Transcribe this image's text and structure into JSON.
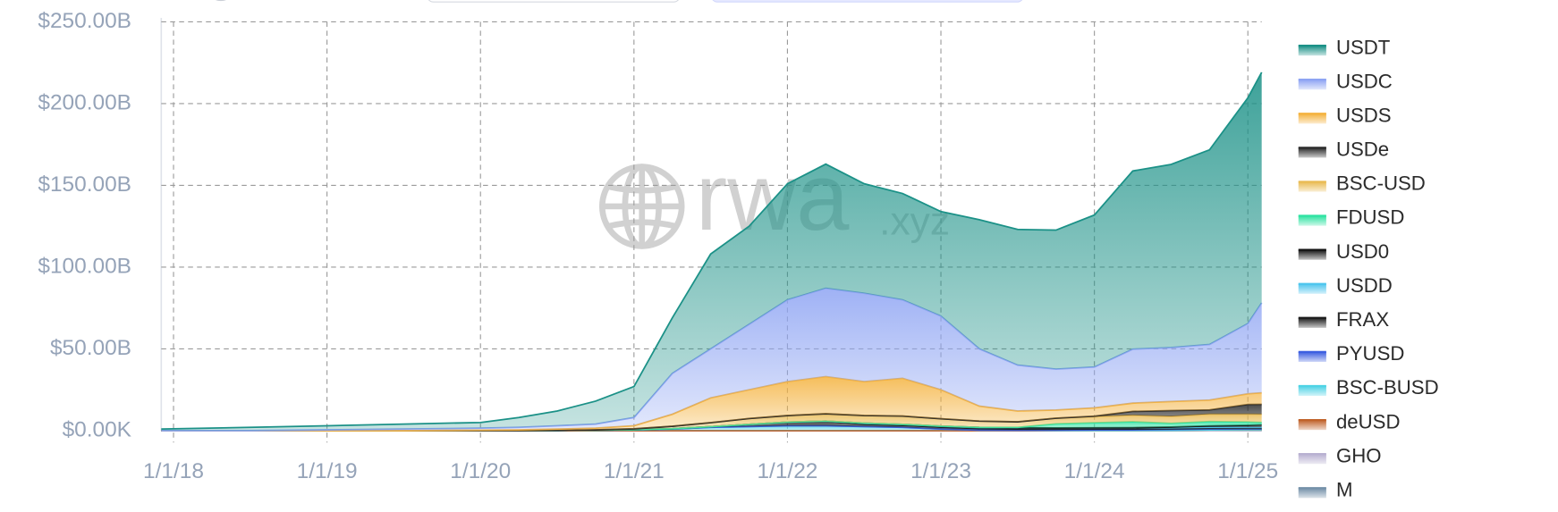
{
  "chart_data": {
    "type": "stacked_area",
    "watermark": [
      "rwa",
      ".xyz"
    ],
    "x": [
      2017.92,
      2018.5,
      2019.0,
      2019.5,
      2020.0,
      2020.25,
      2020.5,
      2020.75,
      2021.0,
      2021.25,
      2021.5,
      2021.75,
      2022.0,
      2022.25,
      2022.5,
      2022.75,
      2023.0,
      2023.25,
      2023.5,
      2023.75,
      2024.0,
      2024.25,
      2024.5,
      2024.75,
      2025.0,
      2025.09
    ],
    "xlim": [
      2017.92,
      2025.09
    ],
    "xticks": [
      {
        "value": 2018,
        "label": "1/1/18"
      },
      {
        "value": 2019,
        "label": "1/1/19"
      },
      {
        "value": 2020,
        "label": "1/1/20"
      },
      {
        "value": 2021,
        "label": "1/1/21"
      },
      {
        "value": 2022,
        "label": "1/1/22"
      },
      {
        "value": 2023,
        "label": "1/1/23"
      },
      {
        "value": 2024,
        "label": "1/1/24"
      },
      {
        "value": 2025,
        "label": "1/1/25"
      }
    ],
    "ylim": [
      0,
      250
    ],
    "yticks": [
      {
        "value": 0,
        "label": "$0.00K"
      },
      {
        "value": 50,
        "label": "$50.00B"
      },
      {
        "value": 100,
        "label": "$100.00B"
      },
      {
        "value": 150,
        "label": "$150.00B"
      },
      {
        "value": 200,
        "label": "$200.00B"
      },
      {
        "value": 250,
        "label": "$250.00B"
      }
    ],
    "grid": true,
    "legend": "right",
    "series": [
      {
        "name": "USDT",
        "color": "#1b9187",
        "values": [
          1,
          2,
          2.5,
          3,
          3.5,
          6,
          9,
          14,
          19,
          34,
          58,
          60,
          71,
          76,
          67,
          65,
          64,
          79,
          83,
          85,
          93,
          109,
          112,
          119,
          138,
          141
        ]
      },
      {
        "name": "USDC",
        "color": "#8ea4f3",
        "values": [
          0,
          0,
          0.5,
          1,
          1.2,
          1.5,
          2,
          2.5,
          5,
          25,
          30,
          40,
          50,
          54,
          54,
          48,
          45,
          35,
          28,
          25,
          25,
          33,
          33,
          34,
          43,
          55
        ]
      },
      {
        "name": "USDS",
        "color": "#f4b23e",
        "values": [
          0,
          0,
          0,
          0,
          0.3,
          0.5,
          0.8,
          1,
          1.9,
          7.3,
          15.1,
          17.6,
          20.8,
          22.7,
          20.7,
          23.1,
          17.7,
          9.2,
          6.6,
          5,
          5,
          5,
          5.5,
          6,
          6.5,
          7
        ]
      },
      {
        "name": "USDe",
        "color": "#2a2a2a",
        "values": [
          0,
          0,
          0,
          0,
          0,
          0,
          0,
          0,
          0,
          0,
          0,
          0,
          0,
          0,
          0,
          0,
          0,
          0,
          0,
          0,
          0.3,
          2.4,
          3.6,
          2.6,
          5.9,
          6.1
        ]
      },
      {
        "name": "BSC-USD",
        "color": "#e9bb52",
        "values": [
          0,
          0,
          0,
          0,
          0,
          0,
          0.1,
          0.2,
          0.5,
          1.5,
          2.5,
          3.5,
          4,
          4.5,
          4.7,
          5,
          4.5,
          3.8,
          3.4,
          3.5,
          3.8,
          4,
          4.2,
          4.5,
          4.8,
          5
        ]
      },
      {
        "name": "FDUSD",
        "color": "#2fe3a2",
        "values": [
          0,
          0,
          0,
          0,
          0,
          0,
          0,
          0,
          0,
          0,
          0,
          0,
          0,
          0,
          0,
          0,
          0,
          0,
          0.3,
          2.5,
          3,
          3.6,
          2.3,
          2.7,
          2,
          1.5
        ]
      },
      {
        "name": "USD0",
        "color": "#141414",
        "values": [
          0,
          0,
          0,
          0,
          0,
          0,
          0,
          0,
          0,
          0,
          0,
          0,
          0,
          0,
          0,
          0,
          0,
          0,
          0,
          0,
          0,
          0,
          0.3,
          0.8,
          1.3,
          1.5
        ]
      },
      {
        "name": "USDD",
        "color": "#4fc6ee",
        "values": [
          0,
          0,
          0,
          0,
          0,
          0,
          0,
          0,
          0,
          0,
          0,
          0,
          0,
          0,
          0.7,
          0.7,
          0.7,
          0.7,
          0.7,
          0.7,
          0.7,
          0.7,
          0.7,
          0.7,
          0.6,
          0.6
        ]
      },
      {
        "name": "FRAX",
        "color": "#1c1c1c",
        "values": [
          0,
          0,
          0,
          0,
          0,
          0,
          0,
          0,
          0.1,
          0.2,
          0.4,
          1.4,
          2.2,
          2.8,
          1.4,
          1.2,
          1.1,
          1,
          0.8,
          0.65,
          0.65,
          0.6,
          0.4,
          0.35,
          0.3,
          0.3
        ]
      },
      {
        "name": "PYUSD",
        "color": "#3d5fe0",
        "values": [
          0,
          0,
          0,
          0,
          0,
          0,
          0,
          0,
          0,
          0,
          0,
          0,
          0,
          0,
          0,
          0,
          0,
          0,
          0,
          0.15,
          0.3,
          0.4,
          0.6,
          0.6,
          0.5,
          0.5
        ]
      },
      {
        "name": "BSC-BUSD",
        "color": "#4fd3e5",
        "values": [
          0,
          0,
          0,
          0,
          0,
          0,
          0.1,
          0.3,
          0.5,
          1,
          2,
          2.5,
          3,
          3,
          2.5,
          2,
          1,
          0.3,
          0.2,
          0.1,
          0.1,
          0.05,
          0.05,
          0.05,
          0.05,
          0.05
        ]
      },
      {
        "name": "deUSD",
        "color": "#c0622a",
        "values": [
          0,
          0,
          0,
          0,
          0,
          0,
          0,
          0,
          0,
          0,
          0,
          0,
          0,
          0,
          0,
          0,
          0,
          0,
          0,
          0,
          0,
          0,
          0,
          0.2,
          0.3,
          0.3
        ]
      },
      {
        "name": "GHO",
        "color": "#b9b1d2",
        "values": [
          0,
          0,
          0,
          0,
          0,
          0,
          0,
          0,
          0,
          0,
          0,
          0,
          0,
          0,
          0,
          0,
          0,
          0,
          0.03,
          0.04,
          0.035,
          0.05,
          0.1,
          0.15,
          0.2,
          0.2
        ]
      },
      {
        "name": "M",
        "color": "#7390a8",
        "values": [
          0,
          0,
          0,
          0,
          0,
          0,
          0,
          0,
          0,
          0,
          0,
          0,
          0,
          0,
          0,
          0,
          0,
          0,
          0,
          0,
          0,
          0,
          0.03,
          0.05,
          0.05,
          0.06
        ]
      }
    ]
  }
}
